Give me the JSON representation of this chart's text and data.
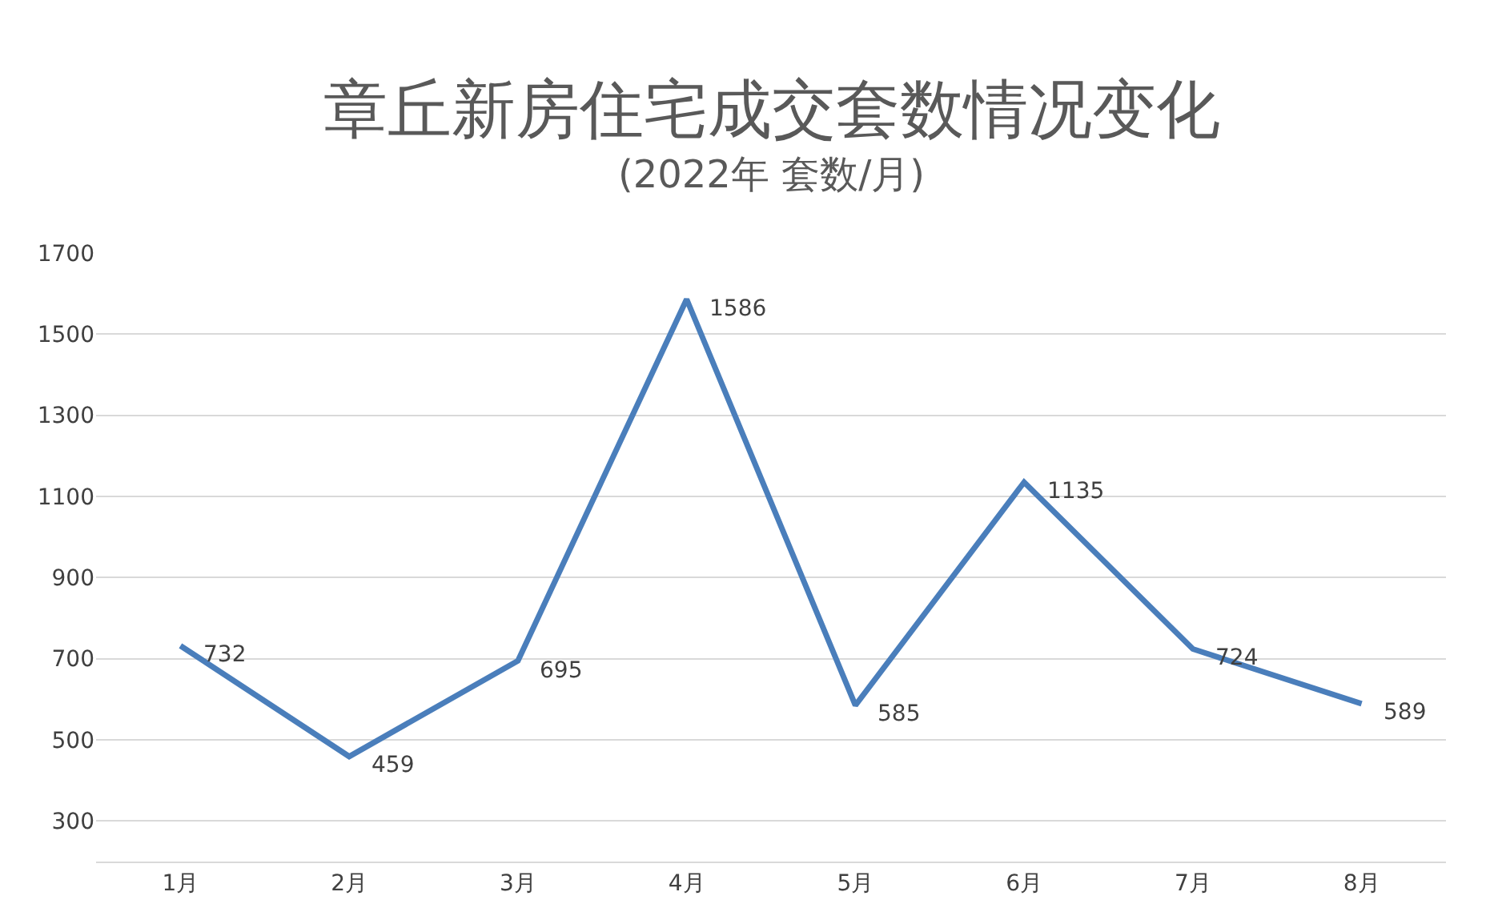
{
  "chart_data": {
    "type": "line",
    "title": "章丘新房住宅成交套数情况变化",
    "subtitle": "(2022年 套数/月)",
    "categories": [
      "1月",
      "2月",
      "3月",
      "4月",
      "5月",
      "6月",
      "7月",
      "8月"
    ],
    "series": [
      {
        "color": "#4a7ebb",
        "values": [
          732,
          459,
          695,
          1586,
          585,
          1135,
          724,
          589
        ]
      }
    ],
    "ylim": [
      200,
      1700
    ],
    "yticks": [
      300,
      500,
      700,
      900,
      1100,
      1300,
      1500,
      1700
    ],
    "grid": "y",
    "data_labels": true,
    "marker": "none",
    "line_style": "solid"
  }
}
